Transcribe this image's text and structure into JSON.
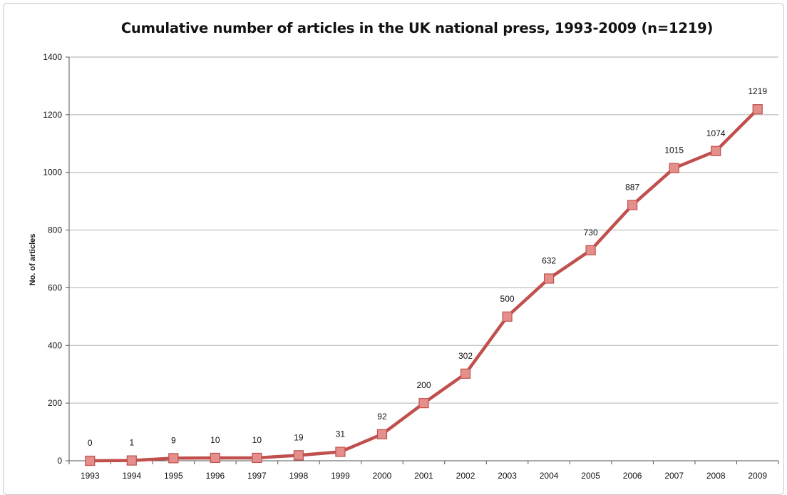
{
  "chart_data": {
    "type": "line",
    "title": "Cumulative number of articles in the UK national press, 1993-2009 (n=1219)",
    "xlabel": "",
    "ylabel": "No. of articles",
    "ylim": [
      0,
      1400
    ],
    "yticks": [
      0,
      200,
      400,
      600,
      800,
      1000,
      1200,
      1400
    ],
    "grid": true,
    "x": [
      "1993",
      "1994",
      "1995",
      "1996",
      "1997",
      "1998",
      "1999",
      "2000",
      "2001",
      "2002",
      "2003",
      "2004",
      "2005",
      "2006",
      "2007",
      "2008",
      "2009"
    ],
    "series": [
      {
        "values": [
          0,
          1,
          9,
          10,
          10,
          19,
          31,
          92,
          200,
          302,
          500,
          632,
          730,
          887,
          1015,
          1074,
          1219
        ],
        "data_labels": [
          "0",
          "1",
          "9",
          "10",
          "10",
          "19",
          "31",
          "92",
          "200",
          "302",
          "500",
          "632",
          "730",
          "887",
          "1015",
          "1074",
          "1219"
        ],
        "color": "#c0504d",
        "marker_fill": "#e58f8c"
      }
    ]
  }
}
